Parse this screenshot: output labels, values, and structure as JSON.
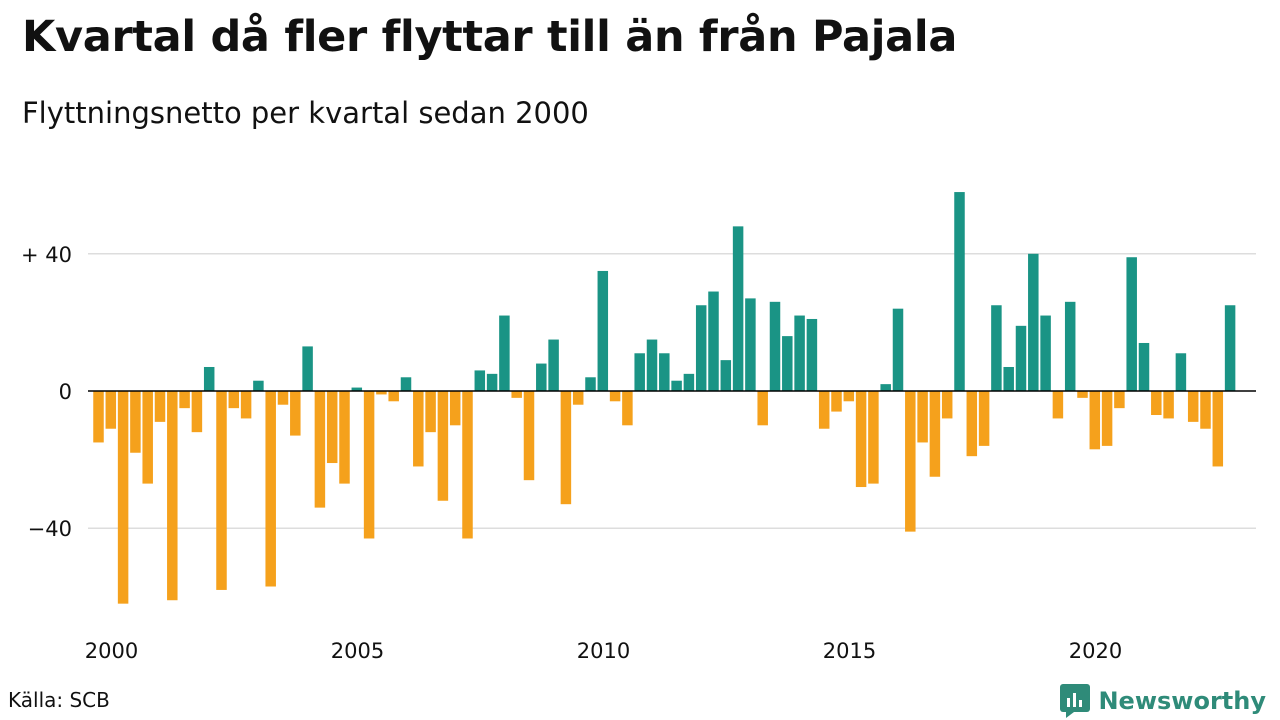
{
  "title": "Kvartal då fler flyttar till än från Pajala",
  "subtitle": "Flyttningsnetto per kvartal sedan 2000",
  "source": "Källa: SCB",
  "brand": "Newsworthy",
  "colors": {
    "positive": "#1a9485",
    "negative": "#f5a11c",
    "grid": "#dddddd",
    "axis": "#000000",
    "brand": "#2f8b79"
  },
  "chart_data": {
    "type": "bar",
    "ylim": [
      -65,
      62
    ],
    "yticks": [
      {
        "value": 40,
        "label": "+ 40"
      },
      {
        "value": 0,
        "label": "0"
      },
      {
        "value": -40,
        "label": "−40"
      }
    ],
    "xticks": [
      {
        "quarter_index": 0,
        "label": "2000"
      },
      {
        "quarter_index": 20,
        "label": "2005"
      },
      {
        "quarter_index": 40,
        "label": "2010"
      },
      {
        "quarter_index": 60,
        "label": "2015"
      },
      {
        "quarter_index": 80,
        "label": "2020"
      }
    ],
    "start": "2000 Q1",
    "grid": true,
    "values": [
      -15,
      -11,
      -62,
      -18,
      -27,
      -9,
      -61,
      -5,
      -12,
      7,
      -58,
      -5,
      -8,
      3,
      -57,
      -4,
      -13,
      13,
      -34,
      -21,
      -27,
      1,
      -43,
      -1,
      -3,
      4,
      -22,
      -12,
      -32,
      -10,
      -43,
      6,
      5,
      22,
      -2,
      -26,
      8,
      15,
      -33,
      -4,
      4,
      35,
      -3,
      -10,
      11,
      15,
      11,
      3,
      5,
      25,
      29,
      9,
      48,
      27,
      -10,
      26,
      16,
      22,
      21,
      -11,
      -6,
      -3,
      -28,
      -27,
      2,
      24,
      -41,
      -15,
      -25,
      -8,
      58,
      -19,
      -16,
      25,
      7,
      19,
      40,
      22,
      -8,
      26,
      -2,
      -17,
      -16,
      -5,
      39,
      14,
      -7,
      -8,
      11,
      -9,
      -11,
      -22,
      25
    ]
  }
}
